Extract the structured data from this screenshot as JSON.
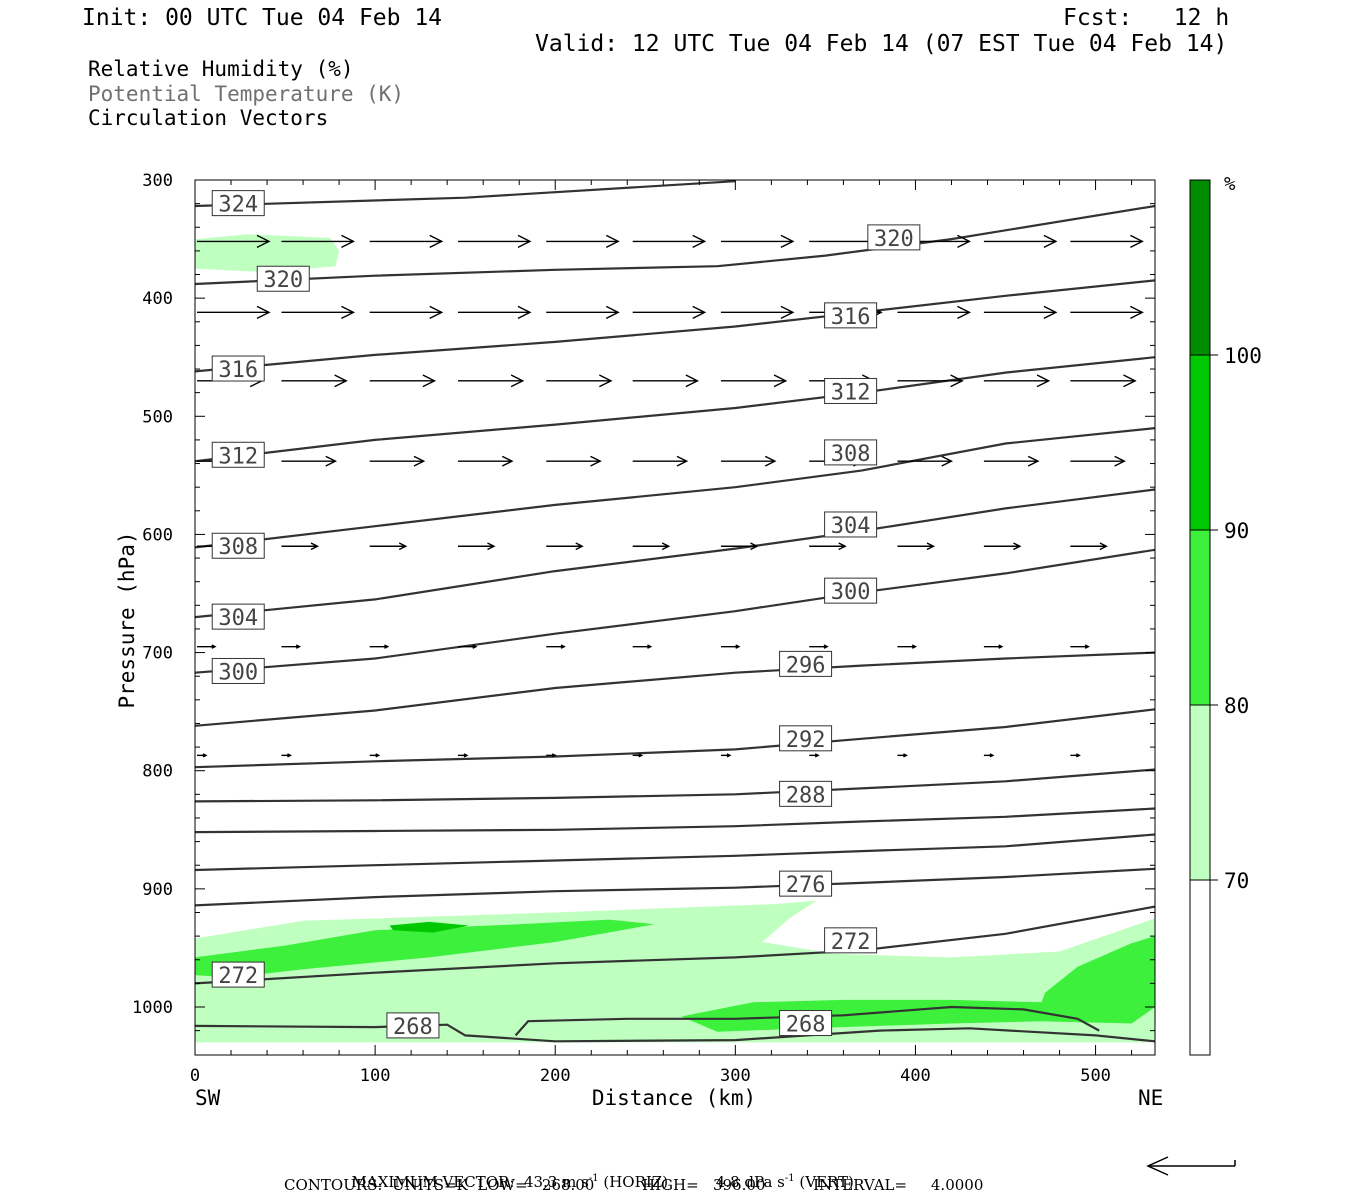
{
  "header": {
    "init": "Init: 00 UTC Tue 04 Feb 14",
    "fcst": "Fcst:   12 h",
    "valid": "Valid: 12 UTC Tue 04 Feb 14 (07 EST Tue 04 Feb 14)"
  },
  "legend": {
    "rh": "Relative Humidity (%)",
    "theta": "Potential Temperature (K)",
    "vectors": "Circulation Vectors"
  },
  "colors": {
    "rh_70_80": "#bfffbf",
    "rh_80_90": "#3cf03c",
    "rh_90_100": "#00c800",
    "rh_100": "#008c00",
    "contour": "#333333",
    "theta_legend_text": "#707070"
  },
  "chart_data": {
    "type": "cross-section",
    "xlabel": "Distance (km)",
    "ylabel": "Pressure (hPa)",
    "x_ticks": [
      0,
      100,
      200,
      300,
      400,
      500
    ],
    "y_ticks": [
      300,
      400,
      500,
      600,
      700,
      800,
      900,
      1000
    ],
    "xlim": [
      0,
      533
    ],
    "ylim": [
      1030,
      300
    ],
    "x_end_labels": {
      "left": "SW",
      "right": "NE"
    },
    "colorbar": {
      "unit": "%",
      "ticks": [
        70,
        80,
        90,
        100
      ],
      "levels": [
        {
          "range": [
            0,
            70
          ],
          "color": "#ffffff"
        },
        {
          "range": [
            70,
            80
          ],
          "color": "#bfffbf"
        },
        {
          "range": [
            80,
            90
          ],
          "color": "#3cf03c"
        },
        {
          "range": [
            90,
            100
          ],
          "color": "#00c800"
        },
        {
          "range": [
            100,
            110
          ],
          "color": "#008c00"
        }
      ]
    },
    "rh_regions": [
      {
        "level": 70,
        "points": [
          [
            0,
            350
          ],
          [
            30,
            346
          ],
          [
            75,
            349
          ],
          [
            80,
            360
          ],
          [
            78,
            373
          ],
          [
            40,
            378
          ],
          [
            0,
            375
          ]
        ]
      },
      {
        "level": 70,
        "points": [
          [
            0,
            942
          ],
          [
            60,
            927
          ],
          [
            200,
            920
          ],
          [
            320,
            913
          ],
          [
            345,
            910
          ],
          [
            330,
            925
          ],
          [
            315,
            945
          ],
          [
            355,
            955
          ],
          [
            420,
            958
          ],
          [
            480,
            953
          ],
          [
            533,
            925
          ],
          [
            533,
            1030
          ],
          [
            0,
            1030
          ]
        ]
      },
      {
        "level": 80,
        "points": [
          [
            0,
            958
          ],
          [
            50,
            948
          ],
          [
            100,
            935
          ],
          [
            180,
            930
          ],
          [
            230,
            926
          ],
          [
            255,
            930
          ],
          [
            200,
            945
          ],
          [
            130,
            958
          ],
          [
            60,
            968
          ],
          [
            20,
            975
          ],
          [
            0,
            973
          ]
        ]
      },
      {
        "level": 90,
        "points": [
          [
            108,
            931
          ],
          [
            130,
            928
          ],
          [
            152,
            931
          ],
          [
            132,
            937
          ],
          [
            110,
            935
          ]
        ]
      },
      {
        "level": 80,
        "points": [
          [
            270,
            1008
          ],
          [
            310,
            996
          ],
          [
            360,
            994
          ],
          [
            420,
            994
          ],
          [
            470,
            996
          ],
          [
            472,
            988
          ],
          [
            490,
            966
          ],
          [
            520,
            946
          ],
          [
            533,
            940
          ],
          [
            533,
            1000
          ],
          [
            520,
            1014
          ],
          [
            470,
            1012
          ],
          [
            420,
            1014
          ],
          [
            340,
            1018
          ],
          [
            290,
            1021
          ]
        ]
      }
    ],
    "theta_contours": [
      {
        "value": 324,
        "points": [
          [
            0,
            322
          ],
          [
            150,
            315
          ],
          [
            300,
            301
          ]
        ],
        "label_at": [
          24,
          320
        ]
      },
      {
        "value": 320,
        "points": [
          [
            0,
            388
          ],
          [
            100,
            381
          ],
          [
            200,
            376
          ],
          [
            290,
            373
          ],
          [
            350,
            364
          ],
          [
            420,
            350
          ],
          [
            533,
            322
          ]
        ],
        "label_at": [
          49,
          384
        ],
        "label_at2": [
          388,
          349
        ]
      },
      {
        "value": 316,
        "points": [
          [
            0,
            462
          ],
          [
            100,
            448
          ],
          [
            200,
            437
          ],
          [
            300,
            424
          ],
          [
            370,
            412
          ],
          [
            450,
            398
          ],
          [
            533,
            385
          ]
        ],
        "label_at": [
          24,
          460
        ],
        "label_at2": [
          364,
          415
        ]
      },
      {
        "value": 312,
        "points": [
          [
            0,
            538
          ],
          [
            100,
            520
          ],
          [
            200,
            507
          ],
          [
            300,
            493
          ],
          [
            370,
            480
          ],
          [
            450,
            463
          ],
          [
            533,
            450
          ]
        ],
        "label_at": [
          24,
          533
        ],
        "label_at2": [
          364,
          479
        ]
      },
      {
        "value": 308,
        "points": [
          [
            0,
            611
          ],
          [
            100,
            593
          ],
          [
            200,
            575
          ],
          [
            300,
            560
          ],
          [
            370,
            546
          ],
          [
            450,
            523
          ],
          [
            533,
            510
          ]
        ],
        "label_at": [
          24,
          610
        ],
        "label_at2": [
          364,
          531
        ]
      },
      {
        "value": 304,
        "points": [
          [
            0,
            670
          ],
          [
            100,
            655
          ],
          [
            200,
            631
          ],
          [
            300,
            612
          ],
          [
            370,
            597
          ],
          [
            450,
            578
          ],
          [
            533,
            562
          ]
        ],
        "label_at": [
          24,
          670
        ],
        "label_at2": [
          364,
          592
        ]
      },
      {
        "value": 300,
        "points": [
          [
            0,
            717
          ],
          [
            100,
            705
          ],
          [
            200,
            684
          ],
          [
            300,
            665
          ],
          [
            370,
            649
          ],
          [
            450,
            633
          ],
          [
            533,
            613
          ]
        ],
        "label_at": [
          24,
          716
        ],
        "label_at2": [
          364,
          648
        ]
      },
      {
        "value": 296,
        "points": [
          [
            0,
            762
          ],
          [
            100,
            749
          ],
          [
            200,
            730
          ],
          [
            300,
            717
          ],
          [
            370,
            711
          ],
          [
            450,
            705
          ],
          [
            533,
            700
          ]
        ],
        "label_at": [
          339,
          710
        ]
      },
      {
        "value": 292,
        "points": [
          [
            0,
            797
          ],
          [
            100,
            792
          ],
          [
            200,
            788
          ],
          [
            300,
            782
          ],
          [
            370,
            773
          ],
          [
            450,
            763
          ],
          [
            533,
            748
          ]
        ],
        "label_at": [
          339,
          773
        ]
      },
      {
        "value": 288,
        "points": [
          [
            0,
            826
          ],
          [
            100,
            825
          ],
          [
            200,
            823
          ],
          [
            300,
            820
          ],
          [
            370,
            815
          ],
          [
            450,
            809
          ],
          [
            533,
            799
          ]
        ],
        "label_at": [
          339,
          820
        ]
      },
      {
        "value": 284,
        "points": [
          [
            0,
            852
          ],
          [
            100,
            851
          ],
          [
            200,
            850
          ],
          [
            300,
            847
          ],
          [
            370,
            843
          ],
          [
            450,
            839
          ],
          [
            533,
            832
          ]
        ]
      },
      {
        "value": 280,
        "points": [
          [
            0,
            884
          ],
          [
            100,
            880
          ],
          [
            200,
            876
          ],
          [
            300,
            872
          ],
          [
            370,
            868
          ],
          [
            450,
            864
          ],
          [
            533,
            854
          ]
        ]
      },
      {
        "value": 276,
        "points": [
          [
            0,
            914
          ],
          [
            100,
            907
          ],
          [
            200,
            902
          ],
          [
            300,
            899
          ],
          [
            370,
            895
          ],
          [
            450,
            890
          ],
          [
            533,
            883
          ]
        ],
        "label_at": [
          339,
          896
        ]
      },
      {
        "value": 272,
        "points": [
          [
            0,
            980
          ],
          [
            100,
            971
          ],
          [
            200,
            963
          ],
          [
            300,
            958
          ],
          [
            370,
            952
          ],
          [
            450,
            938
          ],
          [
            533,
            915
          ]
        ],
        "label_at": [
          24,
          973
        ],
        "label_at2": [
          364,
          944
        ]
      },
      {
        "value": 268,
        "points": [
          [
            0,
            1016
          ],
          [
            100,
            1017
          ],
          [
            140,
            1015
          ],
          [
            150,
            1024
          ],
          [
            200,
            1029
          ],
          [
            300,
            1028
          ],
          [
            380,
            1020
          ],
          [
            430,
            1018
          ],
          [
            500,
            1024
          ],
          [
            533,
            1029
          ]
        ],
        "label_at": [
          121,
          1016
        ]
      },
      {
        "value": 268,
        "points": [
          [
            178,
            1024
          ],
          [
            185,
            1012
          ],
          [
            240,
            1010
          ],
          [
            300,
            1010
          ],
          [
            360,
            1007
          ],
          [
            420,
            1000
          ],
          [
            460,
            1002
          ],
          [
            490,
            1010
          ],
          [
            502,
            1020
          ]
        ],
        "label_at": [
          339,
          1014
        ]
      }
    ],
    "vector_rows": [
      {
        "p": 352,
        "dx": 40,
        "dy": 0
      },
      {
        "p": 412,
        "dx": 40,
        "dy": 0
      },
      {
        "p": 470,
        "dx": 36,
        "dy": 0
      },
      {
        "p": 538,
        "dx": 30,
        "dy": 0
      },
      {
        "p": 610,
        "dx": 20,
        "dy": 0
      },
      {
        "p": 695,
        "dx": 10,
        "dy": 0
      },
      {
        "p": 787,
        "dx": 5,
        "dy": 0
      }
    ],
    "vector_x_positions": [
      0,
      48,
      97,
      146,
      195,
      243,
      292,
      341,
      390,
      438,
      486
    ],
    "footer": {
      "maximum_vector_label": "MAXIMUM VECTOR:",
      "horiz_value": "43.3",
      "horiz_unit": "m s",
      "horiz_exp": "-1",
      "horiz_tag": "(HORIZ)",
      "vert_value": "4.8",
      "vert_unit": "dPa s",
      "vert_exp": "-1",
      "vert_tag": "(VERT)",
      "contours_line": "CONTOURS:  UNITS=K  LOW=   268.00          HIGH=   396.00          INTERVAL=     4.0000"
    }
  }
}
